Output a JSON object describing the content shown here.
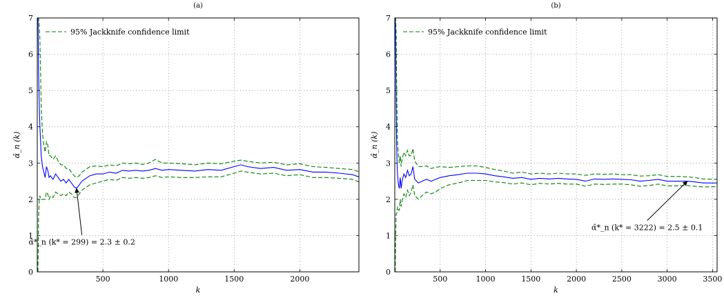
{
  "chart_data": [
    {
      "type": "line",
      "title": "(a)",
      "xlabel": "k",
      "ylabel": "α̂_n (k)",
      "xlim": [
        0,
        2450
      ],
      "ylim": [
        0,
        7
      ],
      "xticks": [
        500,
        1000,
        1500,
        2000
      ],
      "yticks": [
        0,
        1,
        2,
        3,
        4,
        5,
        6,
        7
      ],
      "grid": true,
      "legend": {
        "position": "top-left",
        "label": "95% Jackknife confidence limit"
      },
      "series": [
        {
          "role": "estimate",
          "color": "#0000ff",
          "style": "solid",
          "x": [
            5,
            10,
            15,
            20,
            25,
            30,
            40,
            50,
            60,
            70,
            80,
            90,
            100,
            120,
            140,
            160,
            180,
            200,
            220,
            240,
            260,
            280,
            299,
            320,
            340,
            360,
            380,
            400,
            450,
            500,
            550,
            600,
            650,
            700,
            750,
            800,
            850,
            900,
            950,
            1000,
            1100,
            1200,
            1300,
            1400,
            1500,
            1550,
            1600,
            1700,
            1800,
            1900,
            2000,
            2100,
            2200,
            2300,
            2400,
            2450
          ],
          "y": [
            7.2,
            5.5,
            4.6,
            4.0,
            3.6,
            3.2,
            2.9,
            2.75,
            2.6,
            2.9,
            2.8,
            2.6,
            2.65,
            2.55,
            2.7,
            2.6,
            2.5,
            2.55,
            2.45,
            2.55,
            2.45,
            2.35,
            2.3,
            2.4,
            2.5,
            2.55,
            2.6,
            2.65,
            2.7,
            2.7,
            2.75,
            2.72,
            2.8,
            2.78,
            2.8,
            2.78,
            2.8,
            2.85,
            2.8,
            2.82,
            2.8,
            2.78,
            2.82,
            2.8,
            2.9,
            2.95,
            2.9,
            2.85,
            2.88,
            2.8,
            2.82,
            2.75,
            2.75,
            2.72,
            2.68,
            2.62
          ]
        },
        {
          "role": "upper-limit",
          "color": "#008000",
          "style": "dashed",
          "x": [
            5,
            10,
            15,
            20,
            25,
            30,
            40,
            50,
            60,
            70,
            80,
            90,
            100,
            120,
            140,
            160,
            180,
            200,
            220,
            240,
            260,
            280,
            299,
            320,
            340,
            360,
            380,
            400,
            450,
            500,
            550,
            600,
            650,
            700,
            750,
            800,
            850,
            900,
            950,
            1000,
            1100,
            1200,
            1300,
            1400,
            1500,
            1550,
            1600,
            1700,
            1800,
            1900,
            2000,
            2100,
            2200,
            2300,
            2400,
            2450
          ],
          "y": [
            7.2,
            7.0,
            6.8,
            6.4,
            5.5,
            4.6,
            3.8,
            3.5,
            3.3,
            3.6,
            3.5,
            3.2,
            3.2,
            3.1,
            3.2,
            3.05,
            2.95,
            2.95,
            2.85,
            2.85,
            2.75,
            2.65,
            2.6,
            2.65,
            2.75,
            2.8,
            2.85,
            2.9,
            2.92,
            2.9,
            2.95,
            2.92,
            3.0,
            2.98,
            3.0,
            2.96,
            3.0,
            3.1,
            3.0,
            3.0,
            2.98,
            2.95,
            3.0,
            2.98,
            3.05,
            3.08,
            3.05,
            3.0,
            3.02,
            2.95,
            2.98,
            2.9,
            2.88,
            2.85,
            2.82,
            2.76
          ]
        },
        {
          "role": "lower-limit",
          "color": "#008000",
          "style": "dashed",
          "x": [
            5,
            10,
            15,
            20,
            25,
            30,
            40,
            50,
            60,
            70,
            80,
            90,
            100,
            120,
            140,
            160,
            180,
            200,
            220,
            240,
            260,
            280,
            299,
            320,
            340,
            360,
            380,
            400,
            450,
            500,
            550,
            600,
            650,
            700,
            750,
            800,
            850,
            900,
            950,
            1000,
            1100,
            1200,
            1300,
            1400,
            1500,
            1550,
            1600,
            1700,
            1800,
            1900,
            2000,
            2100,
            2200,
            2300,
            2400,
            2450
          ],
          "y": [
            0,
            1.5,
            2.0,
            2.1,
            2.0,
            2.0,
            2.0,
            2.0,
            2.0,
            2.2,
            2.15,
            2.0,
            2.1,
            2.05,
            2.2,
            2.15,
            2.1,
            2.15,
            2.1,
            2.2,
            2.15,
            2.05,
            2.05,
            2.15,
            2.25,
            2.3,
            2.35,
            2.4,
            2.45,
            2.5,
            2.55,
            2.52,
            2.6,
            2.58,
            2.6,
            2.58,
            2.6,
            2.65,
            2.6,
            2.62,
            2.6,
            2.6,
            2.62,
            2.62,
            2.72,
            2.78,
            2.75,
            2.7,
            2.72,
            2.65,
            2.68,
            2.6,
            2.6,
            2.58,
            2.55,
            2.48
          ]
        }
      ],
      "annotation": {
        "text": "α̂*_n (k* = 299) = 2.3 ± 0.2",
        "point": [
          299,
          2.3
        ],
        "text_at": [
          340,
          0.9
        ]
      }
    },
    {
      "type": "line",
      "title": "(b)",
      "xlabel": "k",
      "ylabel": "α̂_n (k)",
      "xlim": [
        0,
        3550
      ],
      "ylim": [
        0,
        7
      ],
      "xticks": [
        500,
        1000,
        1500,
        2000,
        2500,
        3000,
        3500
      ],
      "yticks": [
        0,
        1,
        2,
        3,
        4,
        5,
        6,
        7
      ],
      "grid": true,
      "legend": {
        "position": "top-left",
        "label": "95% Jackknife confidence limit"
      },
      "series": [
        {
          "role": "estimate",
          "color": "#0000ff",
          "style": "solid",
          "x": [
            5,
            10,
            15,
            20,
            25,
            30,
            40,
            50,
            60,
            70,
            80,
            100,
            120,
            140,
            160,
            180,
            200,
            220,
            240,
            260,
            300,
            350,
            400,
            450,
            500,
            600,
            700,
            800,
            900,
            1000,
            1100,
            1200,
            1300,
            1400,
            1500,
            1600,
            1700,
            1800,
            1900,
            2000,
            2100,
            2200,
            2300,
            2400,
            2500,
            2600,
            2700,
            2800,
            2900,
            3000,
            3100,
            3222,
            3300,
            3400,
            3550
          ],
          "y": [
            7.2,
            6.0,
            4.5,
            3.6,
            3.0,
            2.7,
            2.4,
            2.3,
            2.6,
            2.3,
            2.5,
            2.7,
            2.6,
            2.8,
            2.65,
            2.7,
            2.9,
            2.55,
            2.5,
            2.45,
            2.5,
            2.55,
            2.5,
            2.55,
            2.6,
            2.65,
            2.68,
            2.72,
            2.72,
            2.7,
            2.65,
            2.62,
            2.58,
            2.6,
            2.55,
            2.58,
            2.56,
            2.58,
            2.56,
            2.55,
            2.5,
            2.56,
            2.55,
            2.56,
            2.55,
            2.54,
            2.5,
            2.52,
            2.55,
            2.5,
            2.5,
            2.5,
            2.48,
            2.45,
            2.45
          ]
        },
        {
          "role": "upper-limit",
          "color": "#008000",
          "style": "dashed",
          "x": [
            5,
            10,
            15,
            20,
            25,
            30,
            40,
            50,
            60,
            70,
            80,
            100,
            120,
            140,
            160,
            180,
            200,
            220,
            240,
            260,
            300,
            350,
            400,
            450,
            500,
            600,
            700,
            800,
            900,
            1000,
            1100,
            1200,
            1300,
            1400,
            1500,
            1600,
            1700,
            1800,
            1900,
            2000,
            2100,
            2200,
            2300,
            2400,
            2500,
            2600,
            2700,
            2800,
            2900,
            3000,
            3100,
            3222,
            3300,
            3400,
            3550
          ],
          "y": [
            7.2,
            7.0,
            6.6,
            5.3,
            4.3,
            3.6,
            3.2,
            3.0,
            3.2,
            2.9,
            3.1,
            3.3,
            3.2,
            3.35,
            3.2,
            3.2,
            3.4,
            3.05,
            2.98,
            2.9,
            2.9,
            2.92,
            2.85,
            2.88,
            2.9,
            2.88,
            2.9,
            2.92,
            2.92,
            2.88,
            2.82,
            2.78,
            2.72,
            2.75,
            2.7,
            2.72,
            2.7,
            2.72,
            2.7,
            2.7,
            2.66,
            2.7,
            2.69,
            2.7,
            2.68,
            2.68,
            2.64,
            2.65,
            2.68,
            2.63,
            2.63,
            2.62,
            2.6,
            2.56,
            2.55
          ]
        },
        {
          "role": "lower-limit",
          "color": "#008000",
          "style": "dashed",
          "x": [
            5,
            10,
            15,
            20,
            25,
            30,
            40,
            50,
            60,
            70,
            80,
            100,
            120,
            140,
            160,
            180,
            200,
            220,
            240,
            260,
            300,
            350,
            400,
            450,
            500,
            600,
            700,
            800,
            900,
            1000,
            1100,
            1200,
            1300,
            1400,
            1500,
            1600,
            1700,
            1800,
            1900,
            2000,
            2100,
            2200,
            2300,
            2400,
            2500,
            2600,
            2700,
            2800,
            2900,
            3000,
            3100,
            3222,
            3300,
            3400,
            3550
          ],
          "y": [
            0,
            1.0,
            1.6,
            1.6,
            1.7,
            1.8,
            1.7,
            1.7,
            2.0,
            1.8,
            1.95,
            2.15,
            2.05,
            2.25,
            2.1,
            2.2,
            2.4,
            2.1,
            2.05,
            2.0,
            2.1,
            2.2,
            2.15,
            2.2,
            2.3,
            2.4,
            2.45,
            2.52,
            2.52,
            2.52,
            2.48,
            2.46,
            2.42,
            2.45,
            2.4,
            2.44,
            2.42,
            2.44,
            2.42,
            2.42,
            2.36,
            2.42,
            2.41,
            2.42,
            2.42,
            2.4,
            2.36,
            2.38,
            2.42,
            2.37,
            2.37,
            2.38,
            2.36,
            2.34,
            2.35
          ]
        }
      ],
      "annotation": {
        "text": "α̂*_n (k* = 3222) = 2.5 ± 0.1",
        "point": [
          3222,
          2.5
        ],
        "text_at": [
          2780,
          1.3
        ]
      }
    }
  ]
}
